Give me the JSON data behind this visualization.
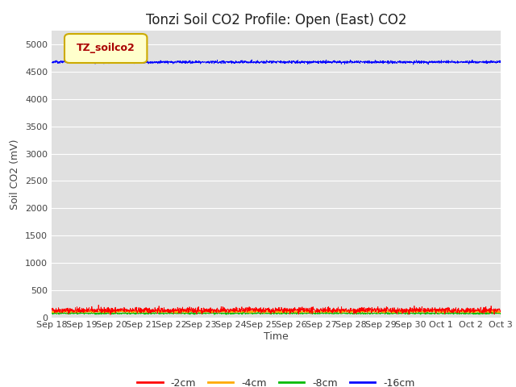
{
  "title": "Tonzi Soil CO2 Profile: Open (East) CO2",
  "ylabel": "Soil CO2 (mV)",
  "xlabel": "Time",
  "ylim": [
    0,
    5250
  ],
  "yticks": [
    0,
    500,
    1000,
    1500,
    2000,
    2500,
    3000,
    3500,
    4000,
    4500,
    5000
  ],
  "bg_color": "#e0e0e0",
  "fig_bg": "#ffffff",
  "line_colors": {
    "-2cm": "#ff0000",
    "-4cm": "#ffaa00",
    "-8cm": "#00bb00",
    "-16cm": "#0000ff"
  },
  "legend_label": "TZ_soilco2",
  "legend_bg": "#ffffcc",
  "legend_border_color": "#ccaa00",
  "legend_text_color": "#aa0000",
  "n_points": 2000,
  "mean_2cm": 130,
  "std_2cm": 25,
  "mean_4cm": 105,
  "std_4cm": 10,
  "mean_8cm": 75,
  "std_8cm": 8,
  "mean_16cm": 4680,
  "std_16cm": 12,
  "xtick_labels": [
    "Sep 18",
    "Sep 19",
    "Sep 20",
    "Sep 21",
    "Sep 22",
    "Sep 23",
    "Sep 24",
    "Sep 25",
    "Sep 26",
    "Sep 27",
    "Sep 28",
    "Sep 29",
    "Sep 30",
    "Oct 1",
    "Oct 2",
    "Oct 3"
  ],
  "title_fontsize": 12,
  "axis_label_fontsize": 9,
  "tick_fontsize": 8,
  "legend_fontsize": 9
}
